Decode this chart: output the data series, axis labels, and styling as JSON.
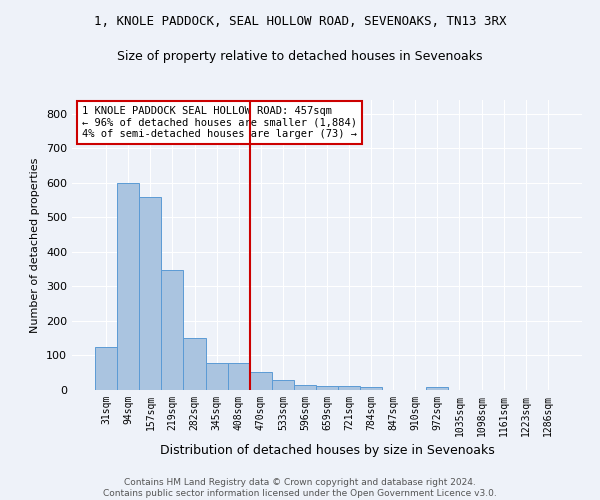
{
  "title_line1": "1, KNOLE PADDOCK, SEAL HOLLOW ROAD, SEVENOAKS, TN13 3RX",
  "title_line2": "Size of property relative to detached houses in Sevenoaks",
  "xlabel": "Distribution of detached houses by size in Sevenoaks",
  "ylabel": "Number of detached properties",
  "categories": [
    "31sqm",
    "94sqm",
    "157sqm",
    "219sqm",
    "282sqm",
    "345sqm",
    "408sqm",
    "470sqm",
    "533sqm",
    "596sqm",
    "659sqm",
    "721sqm",
    "784sqm",
    "847sqm",
    "910sqm",
    "972sqm",
    "1035sqm",
    "1098sqm",
    "1161sqm",
    "1223sqm",
    "1286sqm"
  ],
  "values": [
    125,
    600,
    558,
    348,
    150,
    78,
    78,
    52,
    30,
    15,
    13,
    13,
    8,
    0,
    0,
    8,
    0,
    0,
    0,
    0,
    0
  ],
  "bar_color": "#aac4e0",
  "bar_edge_color": "#5b9bd5",
  "vline_x": 6.5,
  "vline_color": "#cc0000",
  "annotation_text": "1 KNOLE PADDOCK SEAL HOLLOW ROAD: 457sqm\n← 96% of detached houses are smaller (1,884)\n4% of semi-detached houses are larger (73) →",
  "annotation_box_color": "#ffffff",
  "annotation_box_edge": "#cc0000",
  "bg_color": "#eef2f9",
  "grid_color": "#ffffff",
  "footer": "Contains HM Land Registry data © Crown copyright and database right 2024.\nContains public sector information licensed under the Open Government Licence v3.0.",
  "ylim": [
    0,
    840
  ],
  "yticks": [
    0,
    100,
    200,
    300,
    400,
    500,
    600,
    700,
    800
  ]
}
